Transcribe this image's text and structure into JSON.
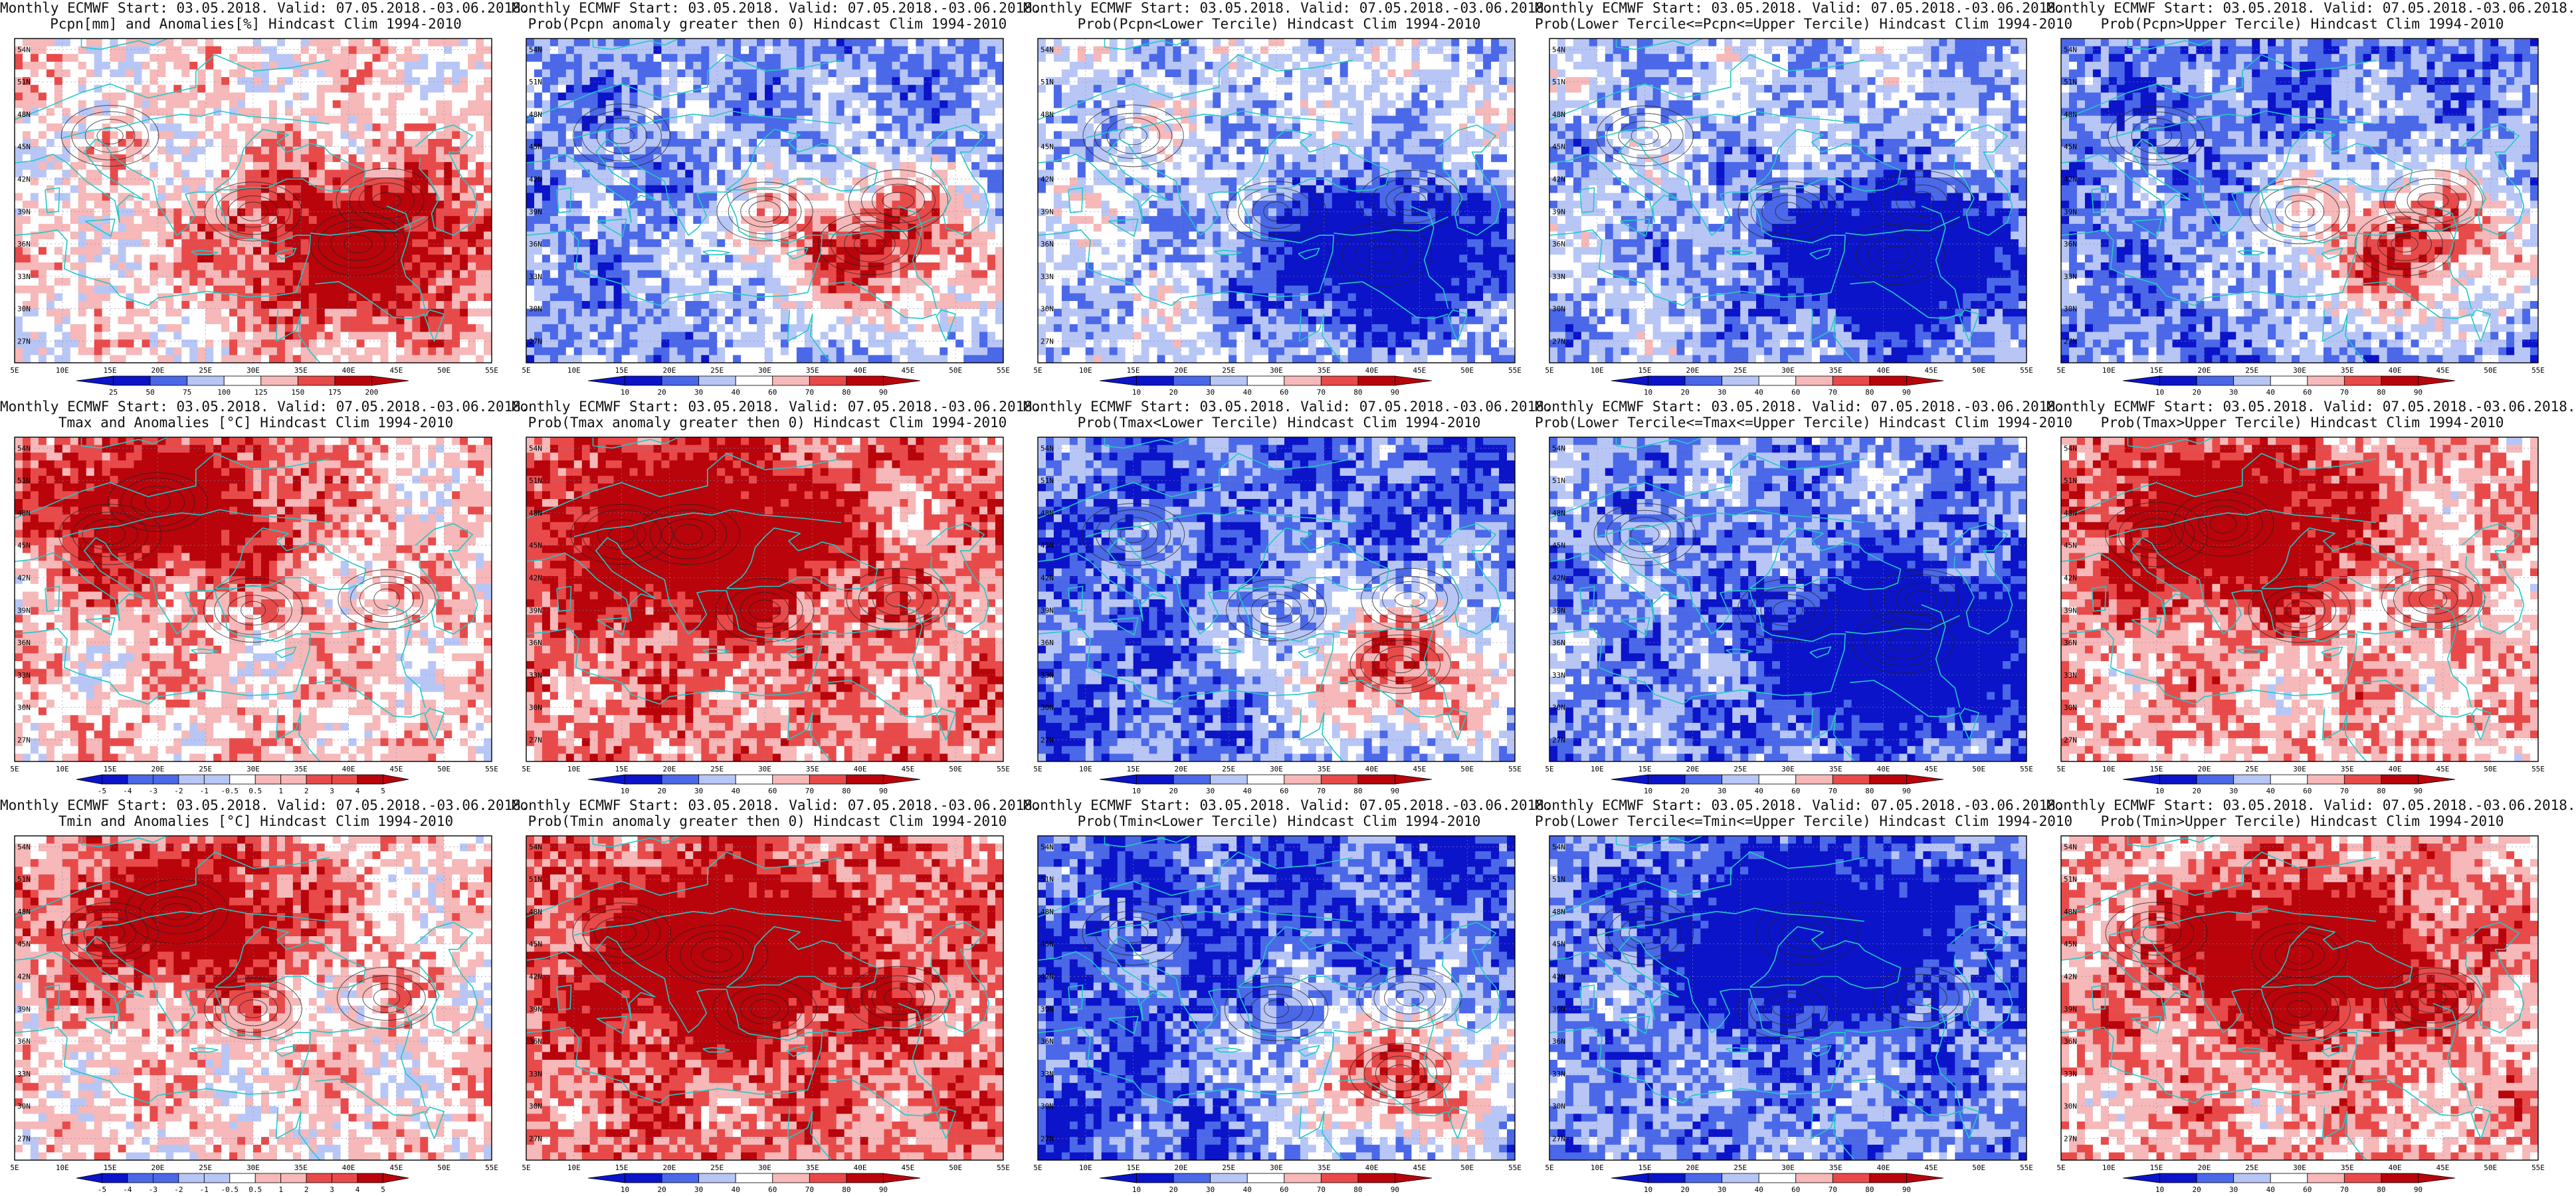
{
  "figure": {
    "rows": [
      {
        "variable": "Pcpn",
        "panels": [
          {
            "title_line1": "Monthly ECMWF Start: 03.05.2018. Valid: 07.05.2018.-03.06.2018.",
            "title_line2": "Pcpn[mm] and Anomalies[%] Hindcast Clim 1994-2010",
            "kind": "anomaly",
            "colorbar_ticks": [
              "25",
              "50",
              "75",
              "100",
              "125",
              "150",
              "175",
              "200"
            ],
            "blob": {
              "lon": 41,
              "lat": 36,
              "sign": 1
            },
            "bg": 0.1
          },
          {
            "title_line1": "Monthly ECMWF Start: 03.05.2018. Valid: 07.05.2018.-03.06.2018.",
            "title_line2": "Prob(Pcpn anomaly greater then 0) Hindcast Clim 1994-2010",
            "kind": "prob",
            "colorbar_ticks": [
              "10",
              "20",
              "30",
              "40",
              "60",
              "70",
              "80",
              "90"
            ],
            "blob": {
              "lon": 41,
              "lat": 36,
              "sign": 1
            },
            "bg": -0.5
          },
          {
            "title_line1": "Monthly ECMWF Start: 03.05.2018. Valid: 07.05.2018.-03.06.2018.",
            "title_line2": "Prob(Pcpn<Lower Tercile) Hindcast Clim 1994-2010",
            "kind": "prob",
            "colorbar_ticks": [
              "10",
              "20",
              "30",
              "40",
              "60",
              "70",
              "80",
              "90"
            ],
            "blob": {
              "lon": 41,
              "lat": 35,
              "sign": -1
            },
            "bg": -0.2
          },
          {
            "title_line1": "Monthly ECMWF Start: 03.05.2018. Valid: 07.05.2018.-03.06.2018.",
            "title_line2": "Prob(Lower Tercile<=Pcpn<=Upper Tercile) Hindcast Clim 1994-2010",
            "kind": "prob",
            "colorbar_ticks": [
              "10",
              "20",
              "30",
              "40",
              "60",
              "70",
              "80",
              "90"
            ],
            "blob": {
              "lon": 41,
              "lat": 35,
              "sign": -1
            },
            "bg": -0.3
          },
          {
            "title_line1": "Monthly ECMWF Start: 03.05.2018. Valid: 07.05.2018.-03.06.2018.",
            "title_line2": "Prob(Pcpn>Upper Tercile) Hindcast Clim 1994-2010",
            "kind": "prob",
            "colorbar_ticks": [
              "10",
              "20",
              "30",
              "40",
              "60",
              "70",
              "80",
              "90"
            ],
            "blob": {
              "lon": 41,
              "lat": 36,
              "sign": 1
            },
            "bg": -0.6
          }
        ]
      },
      {
        "variable": "Tmax",
        "panels": [
          {
            "title_line1": "Monthly ECMWF Start: 03.05.2018. Valid: 07.05.2018.-03.06.2018.",
            "title_line2": "Tmax and Anomalies [°C] Hindcast Clim 1994-2010",
            "kind": "anomaly",
            "colorbar_ticks": [
              "-5",
              "-4",
              "-3",
              "-2",
              "-1",
              "-0.5",
              "0.5",
              "1",
              "2",
              "3",
              "4",
              "5"
            ],
            "blob": {
              "lon": 20,
              "lat": 49,
              "sign": 1
            },
            "bg": 0.2
          },
          {
            "title_line1": "Monthly ECMWF Start: 03.05.2018. Valid: 07.05.2018.-03.06.2018.",
            "title_line2": "Prob(Tmax anomaly greater then 0) Hindcast Clim 1994-2010",
            "kind": "prob",
            "colorbar_ticks": [
              "10",
              "20",
              "30",
              "40",
              "60",
              "70",
              "80",
              "90"
            ],
            "blob": {
              "lon": 22,
              "lat": 46,
              "sign": 1
            },
            "bg": 0.5
          },
          {
            "title_line1": "Monthly ECMWF Start: 03.05.2018. Valid: 07.05.2018.-03.06.2018.",
            "title_line2": "Prob(Tmax<Lower Tercile) Hindcast Clim 1994-2010",
            "kind": "prob",
            "colorbar_ticks": [
              "10",
              "20",
              "30",
              "40",
              "60",
              "70",
              "80",
              "90"
            ],
            "blob": {
              "lon": 43,
              "lat": 34,
              "sign": 1
            },
            "bg": -0.7
          },
          {
            "title_line1": "Monthly ECMWF Start: 03.05.2018. Valid: 07.05.2018.-03.06.2018.",
            "title_line2": "Prob(Lower Tercile<=Tmax<=Upper Tercile) Hindcast Clim 1994-2010",
            "kind": "prob",
            "colorbar_ticks": [
              "10",
              "20",
              "30",
              "40",
              "60",
              "70",
              "80",
              "90"
            ],
            "blob": {
              "lon": 42,
              "lat": 36,
              "sign": -1
            },
            "bg": -0.5
          },
          {
            "title_line1": "Monthly ECMWF Start: 03.05.2018. Valid: 07.05.2018.-03.06.2018.",
            "title_line2": "Prob(Tmax>Upper Tercile) Hindcast Clim 1994-2010",
            "kind": "prob",
            "colorbar_ticks": [
              "10",
              "20",
              "30",
              "40",
              "60",
              "70",
              "80",
              "90"
            ],
            "blob": {
              "lon": 22,
              "lat": 47,
              "sign": 1
            },
            "bg": 0.3
          }
        ]
      },
      {
        "variable": "Tmin",
        "panels": [
          {
            "title_line1": "Monthly ECMWF Start: 03.05.2018. Valid: 07.05.2018.-03.06.2018.",
            "title_line2": "Tmin and Anomalies [°C] Hindcast Clim 1994-2010",
            "kind": "anomaly",
            "colorbar_ticks": [
              "-5",
              "-4",
              "-3",
              "-2",
              "-1",
              "-0.5",
              "0.5",
              "1",
              "2",
              "3",
              "4",
              "5"
            ],
            "blob": {
              "lon": 22,
              "lat": 48,
              "sign": 1
            },
            "bg": 0.15
          },
          {
            "title_line1": "Monthly ECMWF Start: 03.05.2018. Valid: 07.05.2018.-03.06.2018.",
            "title_line2": "Prob(Tmin anomaly greater then 0) Hindcast Clim 1994-2010",
            "kind": "prob",
            "colorbar_ticks": [
              "10",
              "20",
              "30",
              "40",
              "60",
              "70",
              "80",
              "90"
            ],
            "blob": {
              "lon": 25,
              "lat": 44,
              "sign": 1
            },
            "bg": 0.55
          },
          {
            "title_line1": "Monthly ECMWF Start: 03.05.2018. Valid: 07.05.2018.-03.06.2018.",
            "title_line2": "Prob(Tmin<Lower Tercile) Hindcast Clim 1994-2010",
            "kind": "prob",
            "colorbar_ticks": [
              "10",
              "20",
              "30",
              "40",
              "60",
              "70",
              "80",
              "90"
            ],
            "blob": {
              "lon": 43,
              "lat": 33,
              "sign": 1
            },
            "bg": -0.75
          },
          {
            "title_line1": "Monthly ECMWF Start: 03.05.2018. Valid: 07.05.2018.-03.06.2018.",
            "title_line2": "Prob(Lower Tercile<=Tmin<=Upper Tercile) Hindcast Clim 1994-2010",
            "kind": "prob",
            "colorbar_ticks": [
              "10",
              "20",
              "30",
              "40",
              "60",
              "70",
              "80",
              "90"
            ],
            "blob": {
              "lon": 32,
              "lat": 46,
              "sign": -1
            },
            "bg": -0.55
          },
          {
            "title_line1": "Monthly ECMWF Start: 03.05.2018. Valid: 07.05.2018.-03.06.2018.",
            "title_line2": "Prob(Tmin>Upper Tercile) Hindcast Clim 1994-2010",
            "kind": "prob",
            "colorbar_ticks": [
              "10",
              "20",
              "30",
              "40",
              "60",
              "70",
              "80",
              "90"
            ],
            "blob": {
              "lon": 30,
              "lat": 44,
              "sign": 1
            },
            "bg": 0.35
          }
        ]
      }
    ],
    "lon_ticks": [
      "5E",
      "10E",
      "15E",
      "20E",
      "25E",
      "30E",
      "35E",
      "40E",
      "45E",
      "50E",
      "55E"
    ],
    "lat_ticks": [
      "27N",
      "30N",
      "33N",
      "36N",
      "39N",
      "42N",
      "45N",
      "48N",
      "51N",
      "54N"
    ],
    "colors": {
      "deep_blue": "#0b14c8",
      "mid_blue": "#4a68e8",
      "light_blue": "#b8c6f6",
      "white": "#ffffff",
      "light_red": "#f6b8b8",
      "mid_red": "#e84a4a",
      "deep_red": "#b8040a",
      "coastline": "#23c8c8",
      "contour": "#222222",
      "grid_line": "#8888aa"
    }
  }
}
